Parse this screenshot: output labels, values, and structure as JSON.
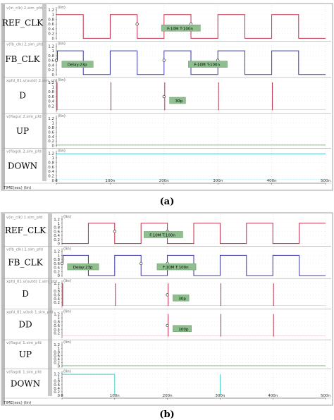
{
  "figure_a_caption": "(a)",
  "figure_b_caption": "(b)",
  "axis_label": "TIME(sec) (lin)",
  "colors": {
    "ref": "#c0304a",
    "fb": "#3a3aa8",
    "d": "#c0304a",
    "dd": "#c0304a",
    "up": "#6aa86a",
    "down": "#40d0d0",
    "annotation_bg": "#8fbf8f",
    "panel_bg": "#f4f4f4",
    "grid": "#dcdcdc"
  },
  "chart_data": [
    {
      "type": "line",
      "title": "",
      "x_unit": "n",
      "xlim": [
        0,
        500
      ],
      "x_ticks": [
        "0",
        "100n",
        "200n",
        "300n",
        "400n",
        "500n"
      ],
      "ylim": [
        0,
        1.2
      ],
      "series": [
        {
          "name": "REF_CLK",
          "legend": "v(in_clk) 2.sim_pfd",
          "y_ticks": [
            "1.2",
            "1",
            "0.8",
            "0.6",
            "0.4",
            "0.2",
            "0"
          ],
          "edges": [
            [
              0,
              1
            ],
            [
              50,
              0
            ],
            [
              100,
              1
            ],
            [
              150,
              0
            ],
            [
              200,
              1
            ],
            [
              250,
              0
            ],
            [
              300,
              1
            ],
            [
              350,
              0
            ],
            [
              400,
              1
            ],
            [
              450,
              0
            ]
          ],
          "markers": [
            150,
            250
          ],
          "annotations": [
            {
              "text": "F:10M T:100n",
              "at": 190
            }
          ]
        },
        {
          "name": "FB_CLK",
          "legend": "v(fb_clk) 2.sim_pfd",
          "y_ticks": [
            "1.2",
            "1",
            "0.8",
            "0.6",
            "0.4",
            "0.2",
            "0"
          ],
          "edges": [
            [
              0,
              0.6
            ],
            [
              2,
              1
            ],
            [
              50,
              0
            ],
            [
              100,
              1
            ],
            [
              150,
              0
            ],
            [
              200,
              1
            ],
            [
              250,
              0
            ],
            [
              300,
              1
            ],
            [
              350,
              0
            ],
            [
              400,
              1
            ],
            [
              450,
              0
            ]
          ],
          "markers": [
            0,
            200,
            300
          ],
          "annotations": [
            {
              "text": "Delay:23p",
              "at": 5
            },
            {
              "text": "F:10M T:100n",
              "at": 240
            }
          ]
        },
        {
          "name": "D",
          "legend": "xpfd_01.v(outd) 2.sim_pfd",
          "y_ticks": [
            "1.2",
            "1",
            "0.8",
            "0.6",
            "0.4",
            "0.2"
          ],
          "spikes": [
            0,
            100,
            200,
            300,
            400
          ],
          "markers": [
            200
          ],
          "annotations": [
            {
              "text": "30p",
              "at": 205
            }
          ]
        },
        {
          "name": "UP",
          "legend": "v(flagu) 2.sim_pfd",
          "y_ticks": [
            "1.2",
            "1",
            "0.8",
            "0.6",
            "0.4",
            "0.2",
            "0"
          ],
          "spikes": []
        },
        {
          "name": "DOWN",
          "legend": "v(flagd) 2.sim_pfd",
          "y_ticks": [
            "1.2",
            "1",
            "0.8",
            "0.6",
            "0.4",
            "0.2",
            "0"
          ],
          "spikes": [],
          "flat_high": true
        }
      ]
    },
    {
      "type": "line",
      "title": "",
      "x_unit": "n",
      "xlim": [
        0,
        500
      ],
      "x_ticks": [
        "0",
        "100n",
        "200n",
        "300n",
        "400n",
        "500n"
      ],
      "ylim": [
        0,
        1.2
      ],
      "series": [
        {
          "name": "REF_CLK",
          "legend": "v(in_clk) 1.sim_pfd",
          "y_ticks": [
            "1.2",
            "1",
            "0.8",
            "0.6",
            "0.4",
            "0.2",
            "0"
          ],
          "edges": [
            [
              0,
              0
            ],
            [
              50,
              1
            ],
            [
              100,
              0
            ],
            [
              150,
              1
            ],
            [
              200,
              0
            ],
            [
              250,
              1
            ],
            [
              300,
              0
            ],
            [
              350,
              1
            ],
            [
              400,
              0
            ],
            [
              450,
              1
            ]
          ],
          "markers": [
            100,
            200
          ],
          "annotations": [
            {
              "text": "F:10M T:100n",
              "at": 150
            }
          ]
        },
        {
          "name": "FB_CLK",
          "legend": "v(fb_clk) 1.sim_pfd",
          "y_ticks": [
            "1.2",
            "1",
            "0.8",
            "0.6",
            "0.4",
            "0.2",
            "0"
          ],
          "edges": [
            [
              0,
              0.6
            ],
            [
              2,
              1
            ],
            [
              50,
              0
            ],
            [
              100,
              1
            ],
            [
              150,
              0
            ],
            [
              200,
              1
            ],
            [
              250,
              0
            ],
            [
              300,
              1
            ],
            [
              350,
              0
            ],
            [
              400,
              1
            ],
            [
              450,
              0
            ]
          ],
          "markers": [
            0,
            150,
            200
          ],
          "annotations": [
            {
              "text": "Delay:23p",
              "at": 5
            },
            {
              "text": "F:10M T:100n",
              "at": 175
            }
          ]
        },
        {
          "name": "D",
          "legend": "xpfd_01.v(outd) 1.sim_pfd",
          "y_ticks": [
            "1.2",
            "1",
            "0.8",
            "0.6",
            "0.4",
            "0.2"
          ],
          "spikes": [
            0,
            100,
            200,
            300,
            400
          ],
          "markers": [
            200
          ],
          "annotations": [
            {
              "text": "30p",
              "at": 205
            }
          ]
        },
        {
          "name": "DD",
          "legend": "xpfd_01.v(bd) 1.sim_pfd",
          "y_ticks": [
            "1.2",
            "1",
            "0.8",
            "0.6",
            "0.4",
            "0.2"
          ],
          "spikes": [
            200,
            300,
            400
          ],
          "markers": [
            200
          ],
          "annotations": [
            {
              "text": "100p",
              "at": 205
            }
          ]
        },
        {
          "name": "UP",
          "legend": "v(flagu) 1.sim_pfd",
          "y_ticks": [
            "1.2",
            "1",
            "0.8",
            "0.6",
            "0.4",
            "0.2",
            "0"
          ],
          "spikes": []
        },
        {
          "name": "DOWN",
          "legend": "v(flagd) 1.sim_pfd",
          "y_ticks": [
            "1.2",
            "1",
            "0.8",
            "0.6",
            "0.4",
            "0.2",
            "0"
          ],
          "down_pulses": [
            [
              0,
              100
            ],
            [
              300,
              300
            ]
          ]
        }
      ]
    }
  ]
}
